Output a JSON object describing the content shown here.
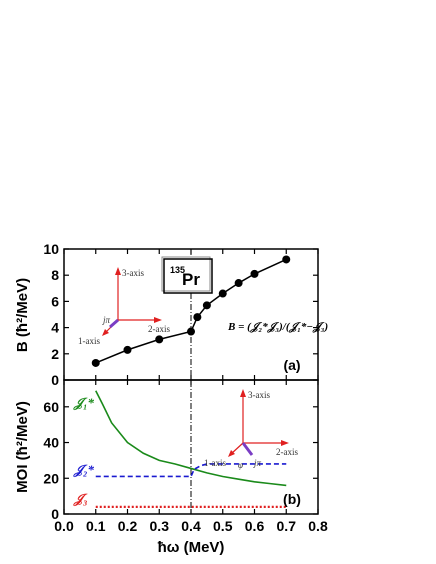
{
  "chart_data": [
    {
      "type": "line",
      "panel_label": "(a)",
      "nucleus_mass": "135",
      "nucleus_symbol": "Pr",
      "ylabel": "B (ħ²/MeV)",
      "ylim": [
        0,
        10
      ],
      "xlim": [
        0.0,
        0.8
      ],
      "yticks": [
        "0",
        "2",
        "4",
        "6",
        "8",
        "10"
      ],
      "formula": "B = (𝒥₂*𝒥₃)/(𝒥₁*−𝒥₃)",
      "series": [
        {
          "x": [
            0.1,
            0.2,
            0.3,
            0.4,
            0.42,
            0.45,
            0.5,
            0.55,
            0.6,
            0.7
          ],
          "y": [
            1.3,
            2.3,
            3.1,
            3.7,
            4.8,
            5.7,
            6.6,
            7.4,
            8.1,
            9.2
          ],
          "color": "#000000"
        }
      ],
      "inset_labels": {
        "axis3": "3-axis",
        "axis2": "2-axis",
        "axis1": "1-axis",
        "j": "jπ"
      }
    },
    {
      "type": "line",
      "panel_label": "(b)",
      "ylabel": "MOI (ħ²/MeV)",
      "xlabel": "ħω (MeV)",
      "ylim": [
        0,
        75
      ],
      "xlim": [
        0.0,
        0.8
      ],
      "yticks": [
        "0",
        "20",
        "40",
        "60"
      ],
      "xticks": [
        "0.0",
        "0.1",
        "0.2",
        "0.3",
        "0.4",
        "0.5",
        "0.6",
        "0.7",
        "0.8"
      ],
      "series": [
        {
          "name": "𝒥₁*",
          "color": "#1a8a1a",
          "style": "solid",
          "x": [
            0.1,
            0.12,
            0.15,
            0.2,
            0.25,
            0.3,
            0.35,
            0.4,
            0.45,
            0.5,
            0.55,
            0.6,
            0.65,
            0.7
          ],
          "y": [
            69,
            62,
            51,
            40,
            34,
            30,
            28,
            25.5,
            23,
            21,
            19.5,
            18,
            17,
            16
          ]
        },
        {
          "name": "𝒥₂*",
          "color": "#1a1ad0",
          "style": "dashed",
          "x": [
            0.1,
            0.4,
            0.41,
            0.43,
            0.45,
            0.5,
            0.6,
            0.7
          ],
          "y": [
            21,
            21,
            25,
            27,
            28,
            28,
            28,
            28
          ]
        },
        {
          "name": "𝒥₃",
          "color": "#e02020",
          "style": "dotted",
          "x": [
            0.1,
            0.7
          ],
          "y": [
            4,
            4
          ]
        }
      ],
      "inset_labels": {
        "axis3": "3-axis",
        "axis2": "2-axis",
        "axis1": "1-axis",
        "j": "jπ",
        "phi": "φ"
      }
    }
  ],
  "vline_x": 0.4
}
